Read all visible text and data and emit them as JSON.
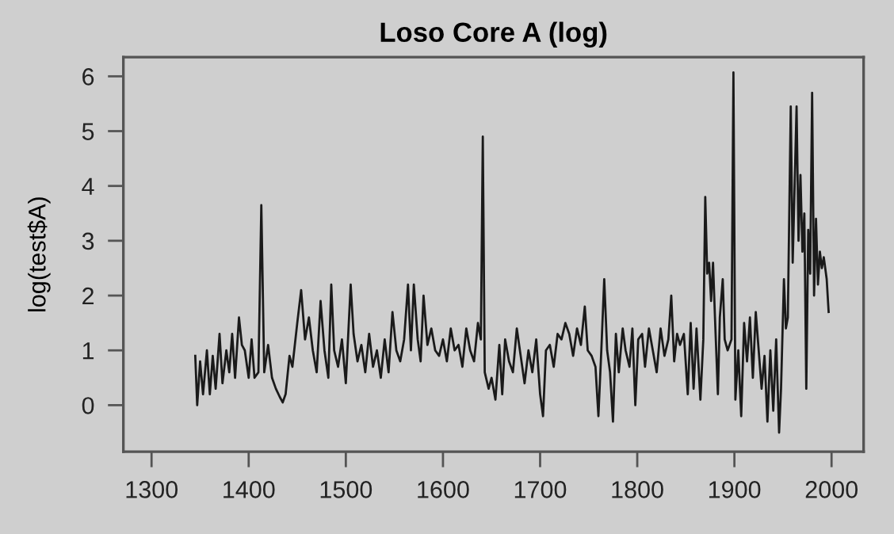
{
  "chart_data": {
    "type": "line",
    "title": "Loso Core A (log)",
    "ylabel": "log(test$A)",
    "xlim": [
      1271,
      2033
    ],
    "ylim": [
      -0.85,
      6.35
    ],
    "xticks": [
      1300,
      1400,
      1500,
      1600,
      1700,
      1800,
      1900,
      2000
    ],
    "yticks": [
      0,
      1,
      2,
      3,
      4,
      5,
      6
    ],
    "grid": false,
    "legend": false,
    "series": [
      {
        "color": "#1a1a1a",
        "x": [
          1345,
          1347,
          1350,
          1353,
          1357,
          1360,
          1363,
          1366,
          1370,
          1373,
          1377,
          1380,
          1383,
          1386,
          1390,
          1393,
          1396,
          1400,
          1403,
          1406,
          1410,
          1413,
          1416,
          1420,
          1424,
          1428,
          1432,
          1435,
          1438,
          1442,
          1445,
          1450,
          1454,
          1458,
          1462,
          1466,
          1470,
          1474,
          1478,
          1482,
          1485,
          1488,
          1492,
          1496,
          1500,
          1505,
          1508,
          1512,
          1516,
          1520,
          1524,
          1528,
          1532,
          1536,
          1540,
          1544,
          1548,
          1552,
          1556,
          1560,
          1564,
          1567,
          1570,
          1574,
          1577,
          1580,
          1584,
          1588,
          1592,
          1596,
          1600,
          1604,
          1608,
          1612,
          1616,
          1620,
          1624,
          1628,
          1632,
          1636,
          1639,
          1641,
          1643,
          1647,
          1650,
          1654,
          1658,
          1661,
          1664,
          1668,
          1672,
          1676,
          1680,
          1684,
          1688,
          1692,
          1696,
          1700,
          1703,
          1706,
          1710,
          1714,
          1718,
          1722,
          1726,
          1730,
          1734,
          1738,
          1742,
          1746,
          1749,
          1753,
          1757,
          1760,
          1763,
          1766,
          1769,
          1772,
          1775,
          1778,
          1781,
          1785,
          1788,
          1792,
          1795,
          1798,
          1801,
          1805,
          1808,
          1812,
          1816,
          1820,
          1824,
          1828,
          1832,
          1835,
          1838,
          1841,
          1844,
          1848,
          1852,
          1855,
          1858,
          1861,
          1865,
          1868,
          1870,
          1872,
          1874,
          1876,
          1878,
          1880,
          1883,
          1885,
          1888,
          1890,
          1893,
          1897,
          1899,
          1901,
          1904,
          1907,
          1910,
          1913,
          1916,
          1919,
          1922,
          1925,
          1928,
          1931,
          1934,
          1937,
          1940,
          1943,
          1946,
          1948,
          1951,
          1953,
          1955,
          1958,
          1960,
          1962,
          1964,
          1966,
          1968,
          1970,
          1972,
          1974,
          1976,
          1978,
          1980,
          1982,
          1984,
          1986,
          1988,
          1990,
          1992,
          1995,
          1997
        ],
        "values": [
          0.9,
          0.0,
          0.8,
          0.2,
          1.0,
          0.2,
          0.9,
          0.3,
          1.3,
          0.4,
          1.0,
          0.6,
          1.3,
          0.5,
          1.6,
          1.1,
          1.0,
          0.5,
          1.2,
          0.5,
          0.6,
          3.65,
          0.6,
          1.1,
          0.5,
          0.3,
          0.15,
          0.05,
          0.2,
          0.9,
          0.7,
          1.5,
          2.1,
          1.2,
          1.6,
          1.0,
          0.6,
          1.9,
          1.0,
          0.5,
          2.2,
          1.0,
          0.7,
          1.2,
          0.4,
          2.2,
          1.3,
          0.8,
          1.1,
          0.6,
          1.3,
          0.7,
          1.0,
          0.5,
          1.2,
          0.6,
          1.7,
          1.0,
          0.8,
          1.2,
          2.2,
          1.0,
          2.2,
          1.2,
          0.8,
          2.0,
          1.1,
          1.4,
          1.0,
          0.9,
          1.2,
          0.8,
          1.4,
          1.0,
          1.1,
          0.7,
          1.4,
          1.0,
          0.8,
          1.5,
          1.2,
          4.9,
          0.6,
          0.3,
          0.5,
          0.1,
          1.1,
          0.2,
          1.2,
          0.8,
          0.6,
          1.4,
          0.9,
          0.4,
          1.0,
          0.6,
          1.2,
          0.2,
          -0.2,
          1.0,
          1.1,
          0.7,
          1.3,
          1.2,
          1.5,
          1.3,
          0.9,
          1.4,
          1.1,
          1.8,
          1.0,
          0.9,
          0.7,
          -0.2,
          1.0,
          2.3,
          1.0,
          0.6,
          -0.3,
          1.3,
          0.6,
          1.4,
          1.0,
          0.7,
          1.4,
          0.0,
          1.2,
          1.3,
          0.7,
          1.4,
          1.0,
          0.6,
          1.4,
          0.9,
          1.2,
          2.0,
          0.8,
          1.3,
          1.1,
          1.3,
          0.2,
          1.5,
          0.3,
          1.4,
          0.1,
          1.2,
          3.8,
          2.4,
          2.6,
          1.9,
          2.6,
          1.6,
          0.2,
          1.6,
          2.3,
          1.2,
          1.0,
          1.2,
          6.07,
          0.1,
          1.0,
          -0.2,
          1.5,
          0.8,
          1.6,
          0.5,
          1.7,
          1.0,
          0.3,
          0.9,
          -0.3,
          1.0,
          -0.1,
          1.2,
          -0.5,
          0.3,
          2.3,
          1.4,
          1.6,
          5.45,
          2.6,
          4.0,
          5.45,
          3.0,
          4.2,
          2.8,
          3.5,
          0.3,
          3.2,
          2.4,
          5.7,
          2.0,
          3.4,
          2.2,
          2.8,
          2.5,
          2.7,
          2.3,
          1.7
        ]
      }
    ]
  }
}
